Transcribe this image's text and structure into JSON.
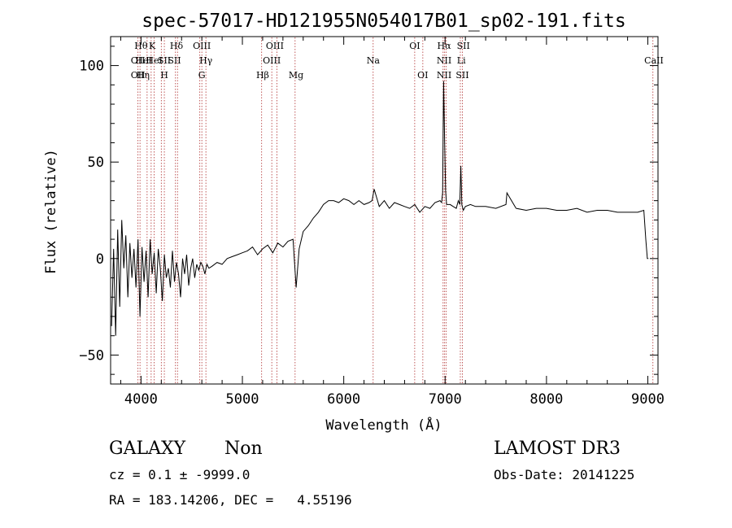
{
  "chart_data": {
    "type": "line",
    "title": "spec-57017-HD121955N054017B01_sp02-191.fits",
    "xlabel": "Wavelength (Å)",
    "ylabel": "Flux (relative)",
    "xlim": [
      3700,
      9100
    ],
    "ylim": [
      -65,
      115
    ],
    "xticks": [
      4000,
      5000,
      6000,
      7000,
      8000,
      9000
    ],
    "yticks": [
      -50,
      0,
      50,
      100
    ],
    "grid": false,
    "series": [
      {
        "color": "#000000",
        "x": [
          3710,
          3730,
          3750,
          3770,
          3790,
          3810,
          3830,
          3850,
          3870,
          3890,
          3910,
          3930,
          3950,
          3970,
          3990,
          4010,
          4030,
          4050,
          4070,
          4090,
          4110,
          4130,
          4150,
          4170,
          4190,
          4210,
          4230,
          4250,
          4270,
          4290,
          4310,
          4330,
          4350,
          4370,
          4390,
          4410,
          4430,
          4450,
          4470,
          4490,
          4510,
          4530,
          4550,
          4570,
          4590,
          4610,
          4630,
          4650,
          4670,
          4700,
          4750,
          4800,
          4850,
          4900,
          4950,
          5000,
          5050,
          5100,
          5150,
          5200,
          5250,
          5300,
          5350,
          5400,
          5450,
          5500,
          5530,
          5560,
          5600,
          5650,
          5700,
          5750,
          5800,
          5850,
          5900,
          5950,
          6000,
          6050,
          6100,
          6150,
          6200,
          6250,
          6280,
          6300,
          6350,
          6400,
          6450,
          6500,
          6550,
          6600,
          6650,
          6700,
          6750,
          6800,
          6850,
          6900,
          6950,
          6965,
          6975,
          6985,
          6995,
          7005,
          7015,
          7025,
          7050,
          7080,
          7110,
          7130,
          7145,
          7155,
          7165,
          7180,
          7200,
          7250,
          7300,
          7400,
          7500,
          7600,
          7610,
          7700,
          7800,
          7900,
          8000,
          8100,
          8200,
          8300,
          8400,
          8500,
          8600,
          8700,
          8800,
          8900,
          8960,
          8980,
          8995,
          9005
        ],
        "y": [
          -35,
          5,
          -40,
          15,
          -25,
          20,
          -5,
          12,
          -20,
          8,
          -10,
          5,
          -15,
          10,
          -30,
          6,
          -12,
          4,
          -20,
          10,
          -8,
          3,
          -18,
          5,
          -5,
          -22,
          2,
          -10,
          -5,
          -15,
          4,
          -12,
          -2,
          -8,
          -20,
          0,
          -8,
          2,
          -14,
          -5,
          0,
          -10,
          -3,
          -6,
          -2,
          -4,
          -8,
          -3,
          -5,
          -4,
          -2,
          -3,
          0,
          1,
          2,
          3,
          4,
          6,
          2,
          5,
          7,
          3,
          8,
          6,
          9,
          10,
          -15,
          5,
          14,
          17,
          21,
          24,
          28,
          30,
          30,
          29,
          31,
          30,
          28,
          30,
          28,
          29,
          30,
          36,
          27,
          30,
          26,
          29,
          28,
          27,
          26,
          28,
          24,
          27,
          26,
          29,
          30,
          29,
          34,
          92,
          60,
          35,
          28,
          28,
          28,
          27,
          26,
          30,
          28,
          48,
          28,
          25,
          27,
          28,
          27,
          27,
          26,
          28,
          34,
          26,
          25,
          26,
          26,
          25,
          25,
          26,
          24,
          25,
          25,
          24,
          24,
          24,
          25,
          10,
          0,
          0
        ]
      }
    ],
    "line_labels": [
      {
        "wl": 3970,
        "row": 1,
        "label": "OII"
      },
      {
        "wl": 3970,
        "row": 2,
        "label": "OII"
      },
      {
        "wl": 4000,
        "row": 0,
        "label": "Hθ"
      },
      {
        "wl": 4025,
        "row": 1,
        "label": "HeI"
      },
      {
        "wl": 4020,
        "row": 2,
        "label": "Hη"
      },
      {
        "wl": 4110,
        "row": 0,
        "label": "K"
      },
      {
        "wl": 4130,
        "row": 1,
        "label": "HeI"
      },
      {
        "wl": 4230,
        "row": 1,
        "label": "SII"
      },
      {
        "wl": 4230,
        "row": 2,
        "label": "H"
      },
      {
        "wl": 4350,
        "row": 0,
        "label": "Hδ"
      },
      {
        "wl": 4330,
        "row": 1,
        "label": "SII"
      },
      {
        "wl": 4600,
        "row": 0,
        "label": "OIII"
      },
      {
        "wl": 4640,
        "row": 1,
        "label": "Hγ"
      },
      {
        "wl": 4600,
        "row": 2,
        "label": "G"
      },
      {
        "wl": 5320,
        "row": 0,
        "label": "OIII"
      },
      {
        "wl": 5290,
        "row": 1,
        "label": "OIII"
      },
      {
        "wl": 5200,
        "row": 2,
        "label": "Hβ"
      },
      {
        "wl": 5530,
        "row": 2,
        "label": "Mg"
      },
      {
        "wl": 6290,
        "row": 1,
        "label": "Na"
      },
      {
        "wl": 6700,
        "row": 0,
        "label": "OI"
      },
      {
        "wl": 6780,
        "row": 2,
        "label": "OI"
      },
      {
        "wl": 6990,
        "row": 0,
        "label": "Hα"
      },
      {
        "wl": 6990,
        "row": 1,
        "label": "NII"
      },
      {
        "wl": 6990,
        "row": 2,
        "label": "NII"
      },
      {
        "wl": 7180,
        "row": 0,
        "label": "SII"
      },
      {
        "wl": 7160,
        "row": 1,
        "label": "Li"
      },
      {
        "wl": 7170,
        "row": 2,
        "label": "SII"
      },
      {
        "wl": 9060,
        "row": 1,
        "label": "CaII"
      }
    ],
    "line_marks": [
      3970,
      3990,
      4060,
      4100,
      4130,
      4200,
      4230,
      4340,
      4360,
      4580,
      4600,
      4640,
      5190,
      5290,
      5340,
      5520,
      6290,
      6700,
      6780,
      6980,
      6995,
      7010,
      7150,
      7170,
      9050
    ]
  },
  "info": {
    "class_label": "GALAXY",
    "subclass_label": "Non",
    "survey": "LAMOST DR3",
    "cz_line": "cz = 0.1 ± -9999.0",
    "obs_date": "Obs-Date: 20141225",
    "radec_line": "RA = 183.14206, DEC =   4.55196"
  }
}
